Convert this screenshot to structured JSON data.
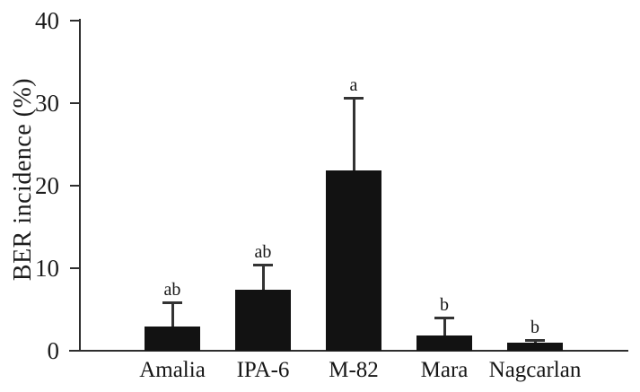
{
  "chart_data": {
    "type": "bar",
    "title": "",
    "ylabel": "BER incidence (%)",
    "xlabel": "",
    "ylim": [
      0,
      40
    ],
    "yticks": [
      0,
      10,
      20,
      30,
      40
    ],
    "grid": false,
    "legend_position": "none",
    "bar_color": "#121212",
    "axis_color": "#2e2e2e",
    "background_color": "#ffffff",
    "categories": [
      "Amalia",
      "IPA-6",
      "M-82",
      "Mara",
      "Nagcarlan"
    ],
    "values": [
      2.9,
      7.4,
      21.8,
      1.8,
      1.0
    ],
    "error_up": [
      3.0,
      3.0,
      8.8,
      2.2,
      0.3
    ],
    "significance_letters": [
      "ab",
      "ab",
      "a",
      "b",
      "b"
    ]
  }
}
